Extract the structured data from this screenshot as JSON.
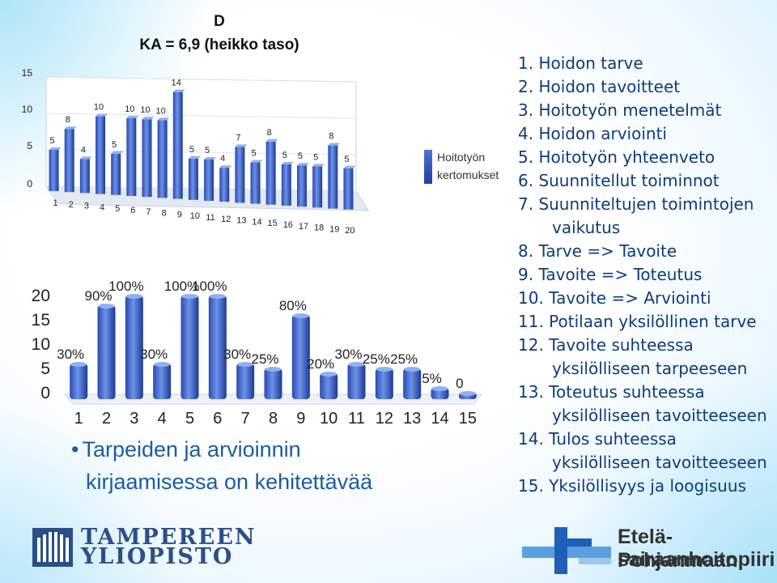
{
  "chart_data": [
    {
      "type": "bar",
      "title": "D",
      "subtitle": "KA = 6,9 (heikko taso)",
      "categories": [
        "1",
        "2",
        "3",
        "4",
        "5",
        "6",
        "7",
        "8",
        "9",
        "10",
        "11",
        "12",
        "13",
        "14",
        "15",
        "16",
        "17",
        "18",
        "19",
        "20"
      ],
      "series": [
        {
          "name": "Hoitotyön kertomukset",
          "values": [
            5,
            8,
            4,
            10,
            5,
            10,
            10,
            10,
            14,
            5,
            5,
            4,
            7,
            5,
            8,
            5,
            5,
            5,
            8,
            5
          ]
        }
      ],
      "yticks": [
        "0",
        "5",
        "10",
        "15"
      ],
      "ylim": [
        0,
        15
      ],
      "legend_position": "right",
      "legend_lines": [
        "Hoitotyön",
        "kertomukset"
      ]
    },
    {
      "type": "bar",
      "categories": [
        "1",
        "2",
        "3",
        "4",
        "5",
        "6",
        "7",
        "8",
        "9",
        "10",
        "11",
        "12",
        "13",
        "14",
        "15"
      ],
      "series": [
        {
          "values": [
            6,
            18,
            20,
            6,
            20,
            20,
            6,
            5,
            16,
            4,
            6,
            5,
            5,
            1,
            0
          ]
        }
      ],
      "data_labels": [
        "30%",
        "90%",
        "100%",
        "30%",
        "100%",
        "100%",
        "30%",
        "25%",
        "80%",
        "20%",
        "30%",
        "25%",
        "25%",
        "5%",
        "0"
      ],
      "yticks": [
        "0",
        "5",
        "10",
        "15",
        "20"
      ],
      "ylim": [
        0,
        20
      ]
    }
  ],
  "bullet_text": {
    "line1": "Tarpeiden ja arvioinnin",
    "line2": "kirjaamisessa on kehitettävää"
  },
  "criteria_list": [
    {
      "text": "1. Hoidon tarve"
    },
    {
      "text": "2. Hoidon tavoitteet"
    },
    {
      "text": "3. Hoitotyön menetelmät"
    },
    {
      "text": "4. Hoidon arviointi"
    },
    {
      "text": "5. Hoitotyön yhteenveto"
    },
    {
      "text": "6. Suunnitellut toiminnot"
    },
    {
      "text": "7. Suunniteltujen toimintojen",
      "cont": "vaikutus"
    },
    {
      "text": "8. Tarve => Tavoite"
    },
    {
      "text": "9. Tavoite => Toteutus"
    },
    {
      "text": "10. Tavoite => Arviointi"
    },
    {
      "text": "11. Potilaan yksilöllinen tarve"
    },
    {
      "text": "12. Tavoite suhteessa",
      "cont": "yksilölliseen tarpeeseen"
    },
    {
      "text": "13. Toteutus suhteessa",
      "cont": "yksilölliseen tavoitteeseen"
    },
    {
      "text": "14. Tulos suhteessa",
      "cont": "yksilölliseen tavoitteeseen"
    },
    {
      "text": "15. Yksilöllisyys ja loogisuus"
    }
  ],
  "logos": {
    "tampere_line1": "TAMPEREEN",
    "tampere_line2": "YLIOPISTO",
    "ep_line1": "Etelä-Pohjanmaan",
    "ep_line2": "sairaanhoitopiiri"
  },
  "colors": {
    "bar_light": "#5b82e0",
    "bar_dark": "#1b3a94",
    "text_blue": "#1a5d9e",
    "list_blue": "#0c3d78"
  }
}
